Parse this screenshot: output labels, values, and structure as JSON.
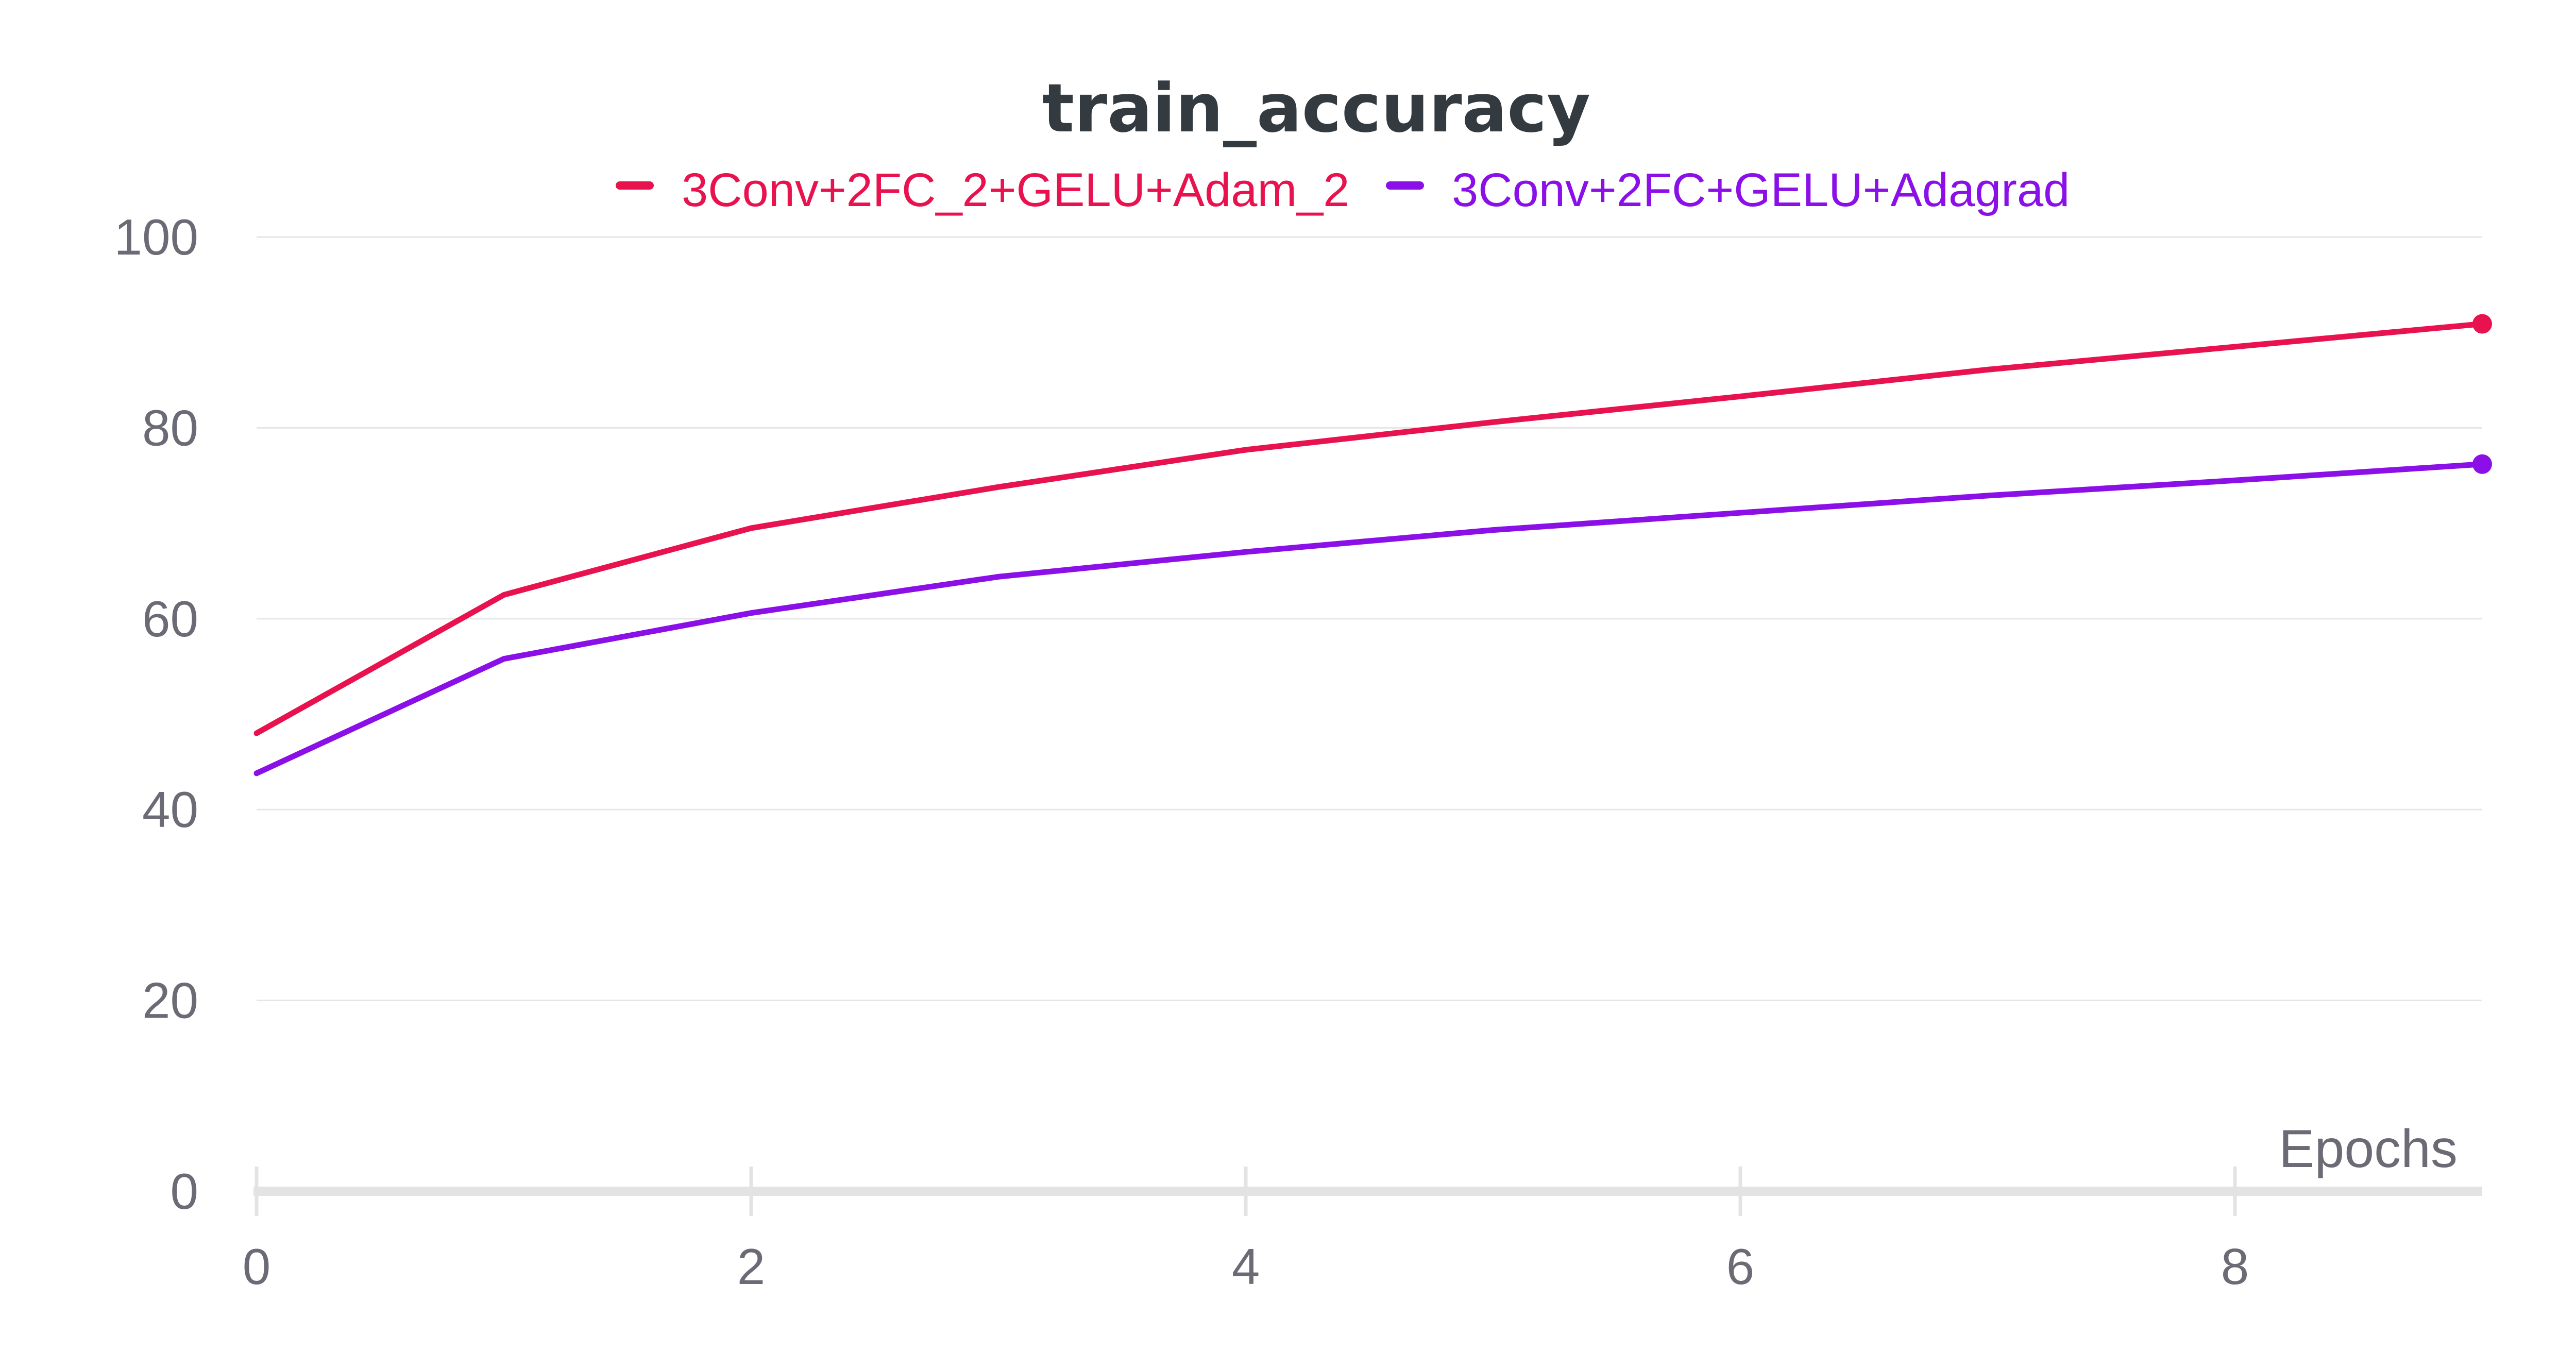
{
  "chart_data": {
    "type": "line",
    "title": "train_accuracy",
    "xlabel": "Epochs",
    "ylabel": "",
    "xlim": [
      0,
      9
    ],
    "ylim": [
      0,
      100
    ],
    "xticks": [
      0,
      2,
      4,
      6,
      8
    ],
    "yticks": [
      0,
      20,
      40,
      60,
      80,
      100
    ],
    "x": [
      0,
      1,
      2,
      3,
      4,
      5,
      6,
      7,
      8,
      9
    ],
    "grid": true,
    "legend_position": "top-center",
    "series": [
      {
        "name": "3Conv+2FC_2+GELU+Adam_2",
        "color": "#e8124f",
        "values": [
          48.0,
          62.5,
          69.5,
          73.8,
          77.7,
          80.6,
          83.3,
          86.1,
          88.5,
          90.9
        ]
      },
      {
        "name": "3Conv+2FC+GELU+Adagrad",
        "color": "#8b10e8",
        "values": [
          43.8,
          55.8,
          60.6,
          64.4,
          67.0,
          69.3,
          71.1,
          72.9,
          74.5,
          76.2
        ]
      }
    ]
  }
}
